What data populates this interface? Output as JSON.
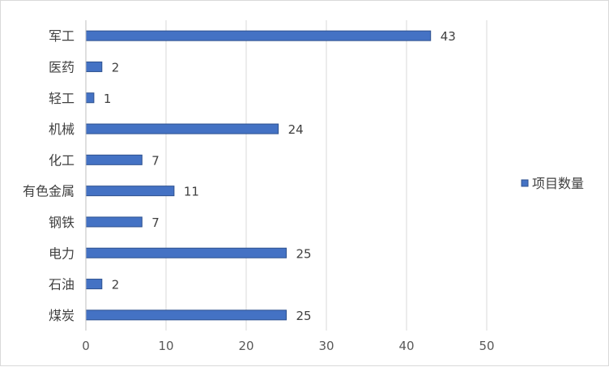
{
  "chart_data": {
    "type": "bar",
    "orientation": "horizontal",
    "categories": [
      "军工",
      "医药",
      "轻工",
      "机械",
      "化工",
      "有色金属",
      "钢铁",
      "电力",
      "石油",
      "煤炭"
    ],
    "series": [
      {
        "name": "项目数量",
        "values": [
          43,
          2,
          1,
          24,
          7,
          11,
          7,
          25,
          2,
          25
        ]
      }
    ],
    "xlim": [
      0,
      50
    ],
    "xticks": [
      0,
      10,
      20,
      30,
      40,
      50
    ],
    "grid": true,
    "legend_position": "right",
    "data_labels": true,
    "colors": {
      "bar_fill": "#4472C4",
      "bar_stroke": "#2F528F",
      "grid": "#d9d9d9",
      "axis": "#bfbfbf"
    }
  }
}
